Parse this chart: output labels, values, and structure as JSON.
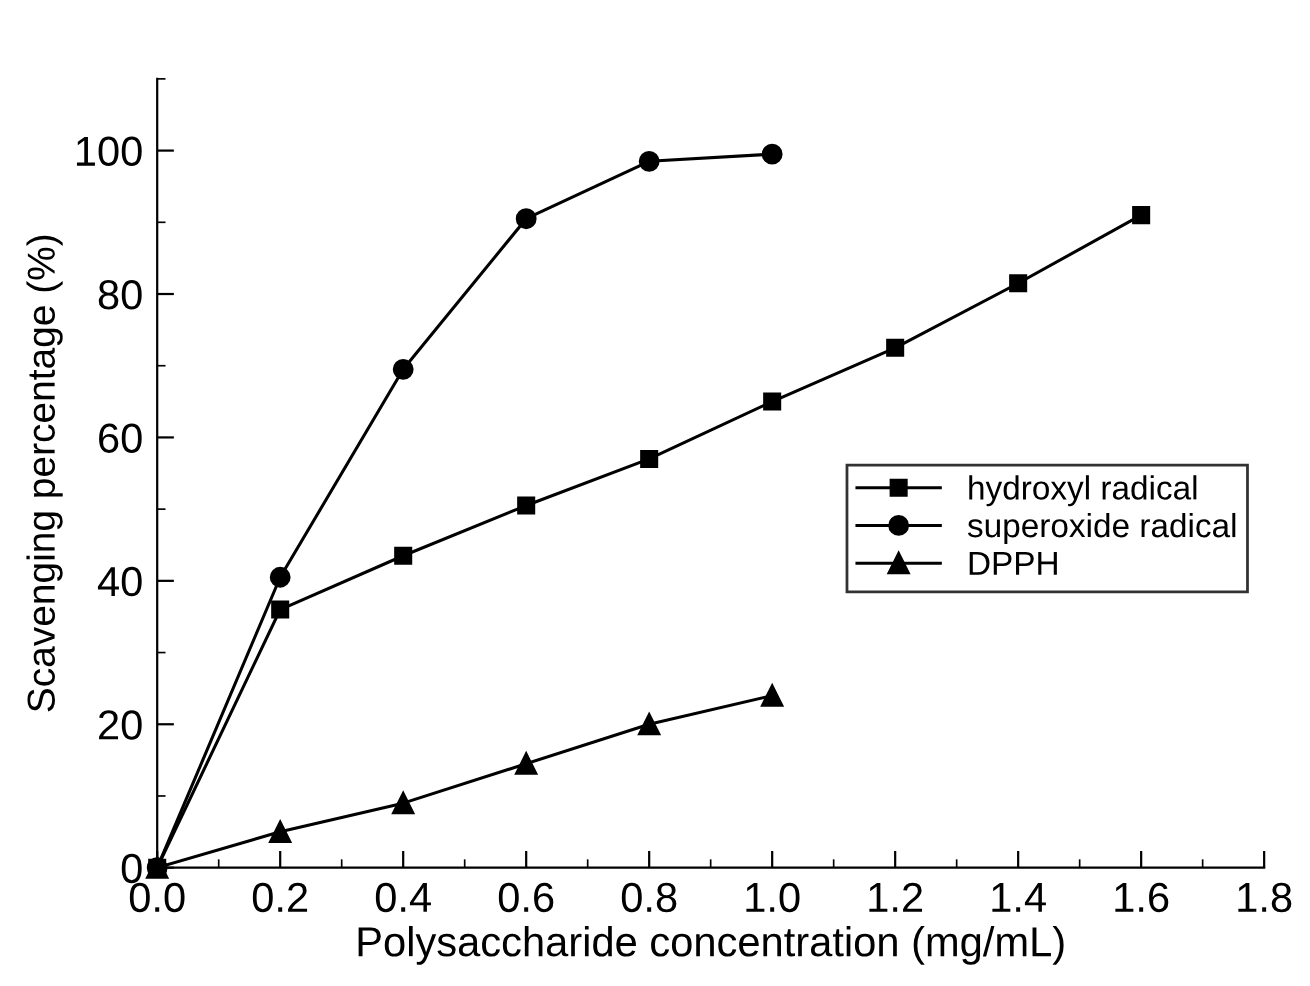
{
  "chart_data": {
    "type": "line",
    "xlabel": "Polysaccharide concentration (mg/mL)",
    "ylabel": "Scavenging percentage (%)",
    "xlim": [
      0,
      1.8
    ],
    "ylim": [
      0,
      110
    ],
    "xticks": [
      {
        "value": 0,
        "label": "0.0"
      },
      0.2,
      0.4,
      0.6,
      0.8,
      {
        "value": 1,
        "label": "1.0"
      },
      1.2,
      1.4,
      1.6,
      1.8
    ],
    "yticks": [
      0,
      20,
      40,
      60,
      80,
      100
    ],
    "line_style": "solid",
    "grid": false,
    "legend": "right",
    "series": [
      {
        "name": "hydroxyl radical",
        "color": "#000000",
        "marker": "square",
        "x": [
          0,
          0.2,
          0.4,
          0.6,
          0.8,
          1.0,
          1.2,
          1.4,
          1.6
        ],
        "values": [
          0,
          36,
          43.5,
          50.5,
          57,
          65,
          72.5,
          81.5,
          91
        ]
      },
      {
        "name": "superoxide radical",
        "color": "#000000",
        "marker": "circle",
        "x": [
          0,
          0.2,
          0.4,
          0.6,
          0.8,
          1.0
        ],
        "values": [
          0,
          40.5,
          69.5,
          90.5,
          98.5,
          99.5
        ]
      },
      {
        "name": "DPPH",
        "color": "#000000",
        "marker": "triangle",
        "x": [
          0,
          0.2,
          0.4,
          0.6,
          0.8,
          1.0
        ],
        "values": [
          0,
          5,
          9,
          14.5,
          20,
          24
        ]
      }
    ]
  }
}
